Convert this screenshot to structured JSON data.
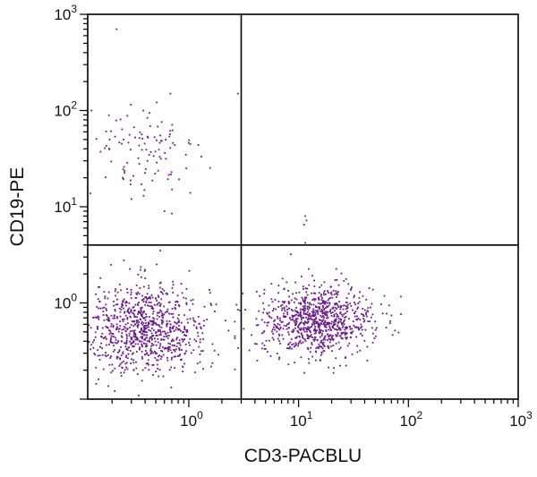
{
  "chart_data": {
    "type": "scatter",
    "xlabel": "CD3-PACBLU",
    "ylabel": "CD19-PE",
    "x_scale": "log",
    "y_scale": "log",
    "xlim": [
      0.12,
      1000
    ],
    "ylim": [
      0.1,
      1000
    ],
    "x_ticks": [
      {
        "value": 1,
        "base": "10",
        "exp": "0"
      },
      {
        "value": 10,
        "base": "10",
        "exp": "1"
      },
      {
        "value": 100,
        "base": "10",
        "exp": "2"
      },
      {
        "value": 1000,
        "base": "10",
        "exp": "3"
      }
    ],
    "y_ticks": [
      {
        "value": 1,
        "base": "10",
        "exp": "0"
      },
      {
        "value": 10,
        "base": "10",
        "exp": "1"
      },
      {
        "value": 100,
        "base": "10",
        "exp": "2"
      },
      {
        "value": 1000,
        "base": "10",
        "exp": "3"
      }
    ],
    "quadrant_gates": {
      "x": 3.0,
      "y": 4.0
    },
    "point_color": "#6a1b8a",
    "clusters": [
      {
        "name": "",
        "center": [
          0.4,
          0.55
        ],
        "spread": [
          0.32,
          0.26
        ],
        "count": 900
      },
      {
        "name": "",
        "center": [
          15,
          0.65
        ],
        "spread": [
          0.28,
          0.2
        ],
        "count": 900
      },
      {
        "name": "",
        "center": [
          0.4,
          35
        ],
        "spread": [
          0.28,
          0.28
        ],
        "count": 100
      }
    ],
    "points": [
      [
        0.22,
        700
      ],
      [
        0.13,
        100
      ],
      [
        0.68,
        150
      ],
      [
        2.8,
        150
      ],
      [
        0.19,
        50
      ],
      [
        0.25,
        20
      ],
      [
        0.42,
        30
      ],
      [
        0.55,
        55
      ],
      [
        0.95,
        25
      ],
      [
        0.3,
        12
      ],
      [
        0.7,
        8.5
      ],
      [
        0.6,
        9
      ],
      [
        11.5,
        8
      ],
      [
        11.8,
        7.2
      ],
      [
        11.2,
        6.5
      ],
      [
        11.5,
        4.2
      ],
      [
        0.55,
        3.5
      ],
      [
        8.5,
        3.2
      ],
      [
        2.8,
        0.85
      ],
      [
        1.6,
        0.95
      ]
    ]
  }
}
